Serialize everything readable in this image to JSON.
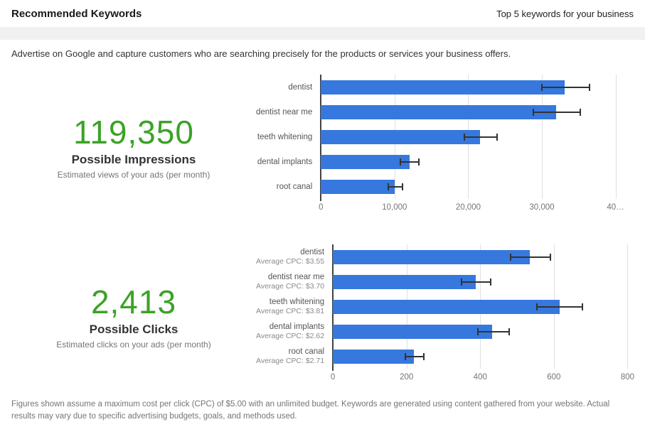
{
  "header": {
    "title": "Recommended Keywords",
    "subtitle": "Top 5 keywords for your business"
  },
  "intro": "Advertise on Google and capture customers who are searching precisely for the products or services your business offers.",
  "impressions_stat": {
    "value": "119,350",
    "label": "Possible Impressions",
    "caption": "Estimated views of your ads (per month)"
  },
  "clicks_stat": {
    "value": "2,413",
    "label": "Possible Clicks",
    "caption": "Estimated clicks on your ads (per month)"
  },
  "footnote": "Figures shown assume a maximum cost per click (CPC) of $5.00 with an unlimited budget. Keywords are generated using content gathered from your website. Actual results may vary due to specific advertising budgets, goals, and methods used.",
  "colors": {
    "bar_blue": "#3678dd",
    "accent_green": "#3ba227",
    "grid_line": "#e0e0e0",
    "axis_line": "#424242",
    "error_bar": "#333333",
    "header_band": "#f1f1f1"
  },
  "chart_data": [
    {
      "id": "impressions_chart",
      "type": "bar",
      "orientation": "horizontal",
      "categories": [
        "dentist",
        "dentist near me",
        "teeth whitening",
        "dental implants",
        "root canal"
      ],
      "values": [
        33100,
        31900,
        21600,
        12000,
        10000
      ],
      "error_low": [
        30000,
        28800,
        19500,
        10800,
        9100
      ],
      "error_high": [
        36500,
        35200,
        23900,
        13300,
        11100
      ],
      "xlim": [
        0,
        42000
      ],
      "ticks": [
        {
          "value": 0,
          "label": "0"
        },
        {
          "value": 10000,
          "label": "10,000"
        },
        {
          "value": 20000,
          "label": "20,000"
        },
        {
          "value": 30000,
          "label": "30,000"
        },
        {
          "value": 40000,
          "label": "40…"
        }
      ],
      "grid": true,
      "legend": "none"
    },
    {
      "id": "clicks_chart",
      "type": "bar",
      "orientation": "horizontal",
      "categories": [
        "dentist",
        "dentist near me",
        "teeth whitening",
        "dental implants",
        "root canal"
      ],
      "sublabels": [
        "Average CPC: $3.55",
        "Average CPC: $3.70",
        "Average CPC: $3.81",
        "Average CPC: $2.62",
        "Average CPC: $2.71"
      ],
      "values": [
        535,
        388,
        615,
        433,
        220
      ],
      "error_low": [
        483,
        350,
        553,
        393,
        197
      ],
      "error_high": [
        590,
        428,
        678,
        479,
        246
      ],
      "xlim": [
        0,
        840
      ],
      "ticks": [
        {
          "value": 0,
          "label": "0"
        },
        {
          "value": 200,
          "label": "200"
        },
        {
          "value": 400,
          "label": "400"
        },
        {
          "value": 600,
          "label": "600"
        },
        {
          "value": 800,
          "label": "800"
        }
      ],
      "grid": true,
      "legend": "none"
    }
  ]
}
